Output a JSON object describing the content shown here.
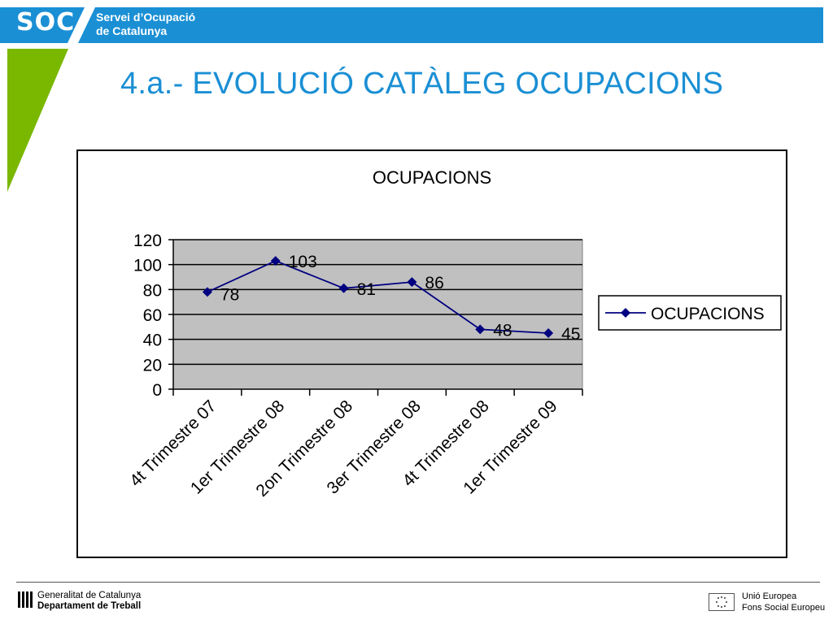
{
  "header": {
    "logo_text": "SOC",
    "org_line1": "Servei d’Ocupació",
    "org_line2": "de Catalunya"
  },
  "page_title": "4.a.- EVOLUCIÓ CATÀLEG OCUPACIONS",
  "footer": {
    "gov_line1": "Generalitat de Catalunya",
    "gov_line2": "Departament de Treball",
    "eu_line1": "Unió Europea",
    "eu_line2": "Fons Social Europeu"
  },
  "colors": {
    "header_blue": "#1a8fd4",
    "accent_green": "#7ab800",
    "series": "#000080",
    "plot_bg": "#c0c0c0"
  },
  "chart_data": {
    "type": "line",
    "title": "OCUPACIONS",
    "xlabel": "",
    "ylabel": "",
    "categories": [
      "4t Trimestre 07",
      "1er Trimestre 08",
      "2on Trimestre 08",
      "3er Trimestre 08",
      "4t Trimestre 08",
      "1er Trimestre 09"
    ],
    "series": [
      {
        "name": "OCUPACIONS",
        "values": [
          78,
          103,
          81,
          86,
          48,
          45
        ]
      }
    ],
    "data_labels": [
      "78",
      "103",
      "81",
      "86",
      "48",
      "45"
    ],
    "ylim": [
      0,
      120
    ],
    "yticks": [
      0,
      20,
      40,
      60,
      80,
      100,
      120
    ],
    "grid": true,
    "legend": "right"
  }
}
